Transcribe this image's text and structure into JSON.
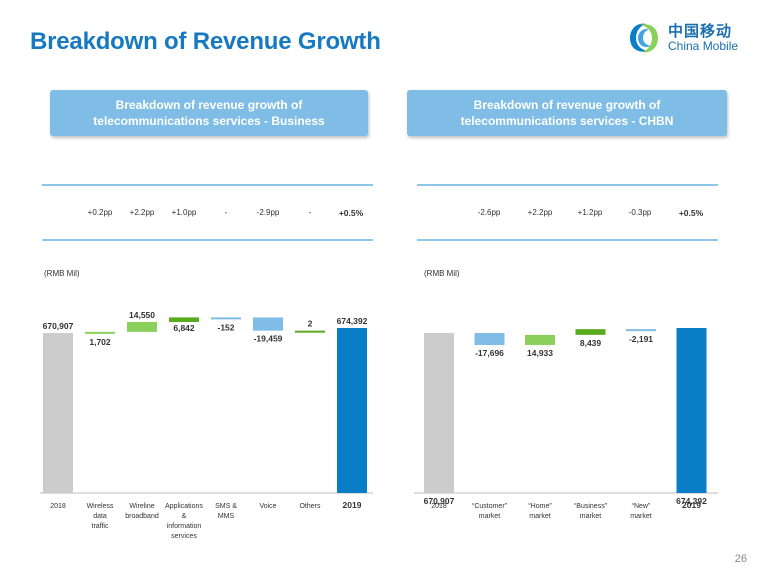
{
  "title": "Breakdown of Revenue Growth",
  "logo": {
    "cn": "中国移动",
    "en": "China Mobile"
  },
  "page_number": "26",
  "colors": {
    "title": "#1779c2",
    "box": "#7fbde6",
    "gray_bar": "#cccccc",
    "blue_bar": "#0a7dc7",
    "light_blue": "#7fbde6",
    "green": "#8cd05c",
    "dark_green": "#5aaa1e"
  },
  "panels": [
    {
      "heading": [
        "Breakdown of revenue growth of",
        "telecommunications services - Business"
      ],
      "unit": "(RMB Mil)",
      "pp": [
        "+0.2pp",
        "+2.2pp",
        "+1.0pp",
        "-",
        "-2.9pp",
        "-",
        "+0.5%"
      ]
    },
    {
      "heading": [
        "Breakdown of revenue growth of",
        "telecommunications services - CHBN"
      ],
      "unit": "(RMB Mil)",
      "pp": [
        "-2.6pp",
        "+2.2pp",
        "+1.2pp",
        "-0.3pp",
        "+0.5%"
      ]
    }
  ],
  "chart_data": [
    {
      "type": "waterfall",
      "categories": [
        [
          "2018"
        ],
        [
          "Wireless",
          "data",
          "traffic"
        ],
        [
          "Wireline",
          "broadband"
        ],
        [
          "Applications",
          "&",
          "information",
          "services"
        ],
        [
          "SMS &",
          "MMS"
        ],
        [
          "Voice"
        ],
        [
          "Others"
        ],
        [
          "2019"
        ]
      ],
      "values": [
        670907,
        1702,
        14550,
        6842,
        -152,
        -19459,
        2,
        674392
      ],
      "labels": [
        "670,907",
        "1,702",
        "14,550",
        "6,842",
        "-152",
        "-19,459",
        "2",
        "674,392"
      ],
      "kinds": [
        "total",
        "delta",
        "delta",
        "delta",
        "delta",
        "delta",
        "delta",
        "total"
      ],
      "colors": [
        "#cccccc",
        "#8cd05c",
        "#8cd05c",
        "#5aaa1e",
        "#7fbde6",
        "#7fbde6",
        "#5aaa1e",
        "#0a7dc7"
      ]
    },
    {
      "type": "waterfall",
      "categories": [
        [
          "2018"
        ],
        [
          "“Customer”",
          "market"
        ],
        [
          "“Home”",
          "market"
        ],
        [
          "“Business”",
          "market"
        ],
        [
          "“New”",
          "market"
        ],
        [
          "2019"
        ]
      ],
      "values": [
        670907,
        -17696,
        14933,
        8439,
        -2191,
        674392
      ],
      "labels": [
        "670,907",
        "-17,696",
        "14,933",
        "8,439",
        "-2,191",
        "674,392"
      ],
      "kinds": [
        "total",
        "delta",
        "delta",
        "delta",
        "delta",
        "total"
      ],
      "colors": [
        "#cccccc",
        "#7fbde6",
        "#8cd05c",
        "#5aaa1e",
        "#7fbde6",
        "#0a7dc7"
      ]
    }
  ]
}
